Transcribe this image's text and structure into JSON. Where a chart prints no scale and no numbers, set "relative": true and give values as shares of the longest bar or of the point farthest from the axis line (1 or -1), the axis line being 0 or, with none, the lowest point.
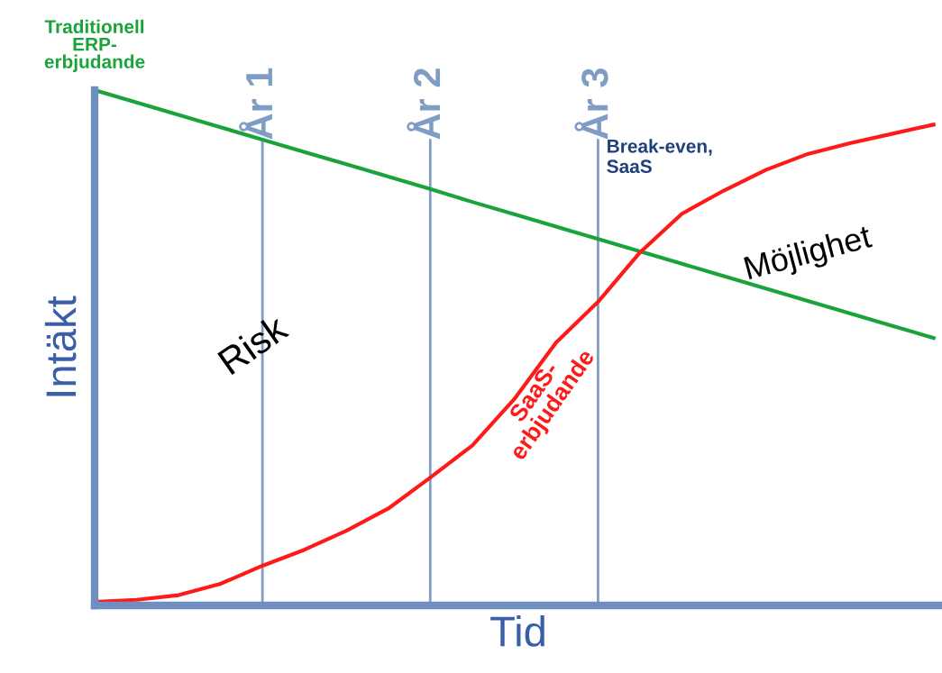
{
  "chart_data": {
    "type": "line",
    "relative": true,
    "xlabel": "Tid",
    "ylabel": "Intäkt",
    "marker": "none",
    "line_style": "solid",
    "grid": "x",
    "categories": [
      null,
      null,
      null,
      null,
      "År 1",
      null,
      null,
      null,
      "År 2",
      null,
      null,
      null,
      "År 3",
      null,
      null,
      null,
      null,
      null,
      null,
      null,
      null
    ],
    "series": [
      {
        "name": "Traditionell\nERP-\nerbjudande",
        "color": "#1aa33a",
        "values": [
          1.0,
          0.976,
          0.952,
          0.928,
          0.904,
          0.88,
          0.856,
          0.832,
          0.808,
          0.783,
          0.759,
          0.735,
          0.711,
          0.687,
          0.663,
          0.639,
          0.615,
          0.591,
          0.567,
          0.543,
          0.519
        ]
      },
      {
        "name": "SaaS-\nerbjudande",
        "color": "#ff1a1a",
        "values": [
          0.007,
          0.011,
          0.02,
          0.042,
          0.077,
          0.108,
          0.145,
          0.188,
          0.248,
          0.31,
          0.4,
          0.51,
          0.589,
          0.685,
          0.76,
          0.805,
          0.845,
          0.876,
          0.897,
          0.915,
          0.933
        ]
      }
    ],
    "annotations": [
      "Break-even,\nSaaS",
      "Risk",
      "Möjlighet"
    ]
  }
}
